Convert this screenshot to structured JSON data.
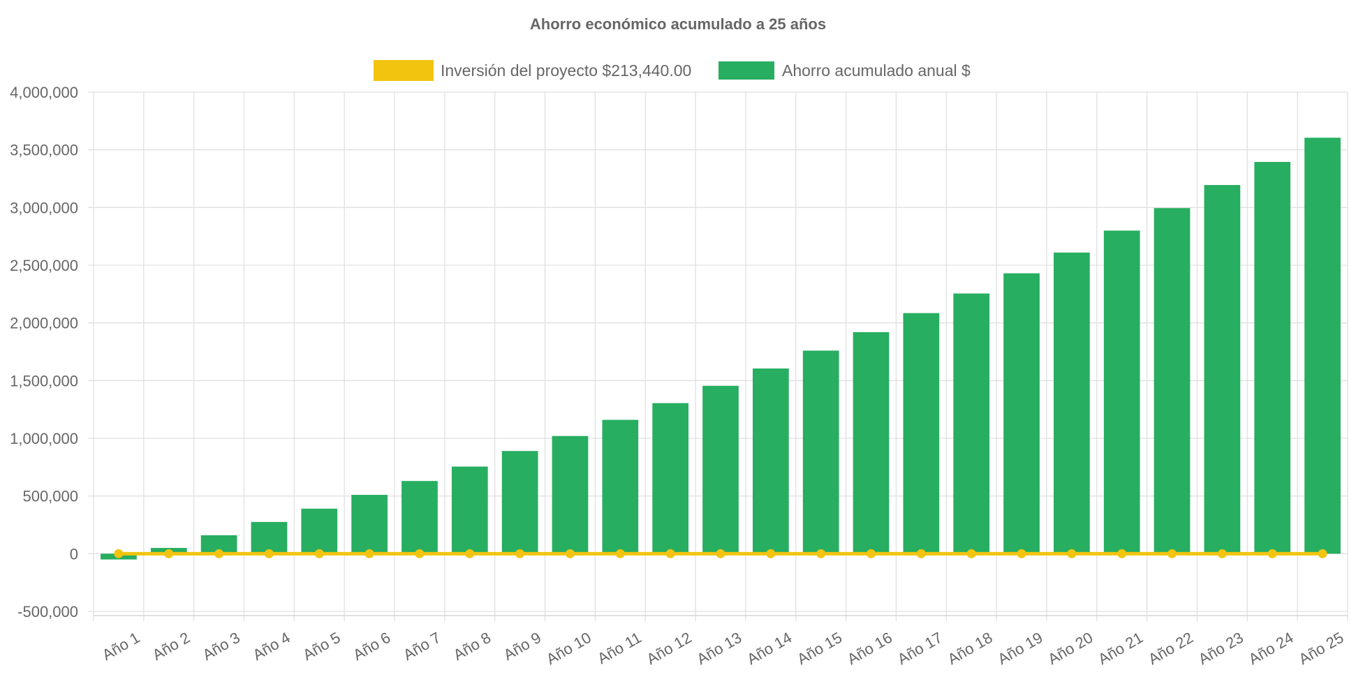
{
  "colors": {
    "investment": "#F2C40F",
    "savings": "#27AE60",
    "grid": "#e0e0e0",
    "text": "#666666"
  },
  "chart_data": {
    "type": "bar",
    "title": "Ahorro económico acumulado a 25 años",
    "xlabel": "",
    "ylabel": "",
    "ylim": [
      -500000,
      4000000
    ],
    "y_ticks": [
      "4,000,000",
      "3,500,000",
      "3,000,000",
      "2,500,000",
      "2,000,000",
      "1,500,000",
      "1,000,000",
      "500,000",
      "0",
      "-500,000"
    ],
    "y_tick_values": [
      4000000,
      3500000,
      3000000,
      2500000,
      2000000,
      1500000,
      1000000,
      500000,
      0,
      -500000
    ],
    "grid": true,
    "legend_position": "top",
    "categories": [
      "Año 1",
      "Año 2",
      "Año 3",
      "Año 4",
      "Año 5",
      "Año 6",
      "Año 7",
      "Año 8",
      "Año 9",
      "Año 10",
      "Año 11",
      "Año 12",
      "Año 13",
      "Año 14",
      "Año 15",
      "Año 16",
      "Año 17",
      "Año 18",
      "Año 19",
      "Año 20",
      "Año 21",
      "Año 22",
      "Año 23",
      "Año 24",
      "Año 25"
    ],
    "series": [
      {
        "name": "Inversión del proyecto $213,440.00",
        "type": "line",
        "color": "#F2C40F",
        "values": [
          0,
          0,
          0,
          0,
          0,
          0,
          0,
          0,
          0,
          0,
          0,
          0,
          0,
          0,
          0,
          0,
          0,
          0,
          0,
          0,
          0,
          0,
          0,
          0,
          0
        ]
      },
      {
        "name": "Ahorro acumulado anual $",
        "type": "bar",
        "color": "#27AE60",
        "values": [
          -50000,
          50000,
          160000,
          275000,
          390000,
          510000,
          630000,
          755000,
          890000,
          1020000,
          1160000,
          1305000,
          1455000,
          1605000,
          1760000,
          1920000,
          2085000,
          2255000,
          2430000,
          2610000,
          2800000,
          2995000,
          3195000,
          3395000,
          3605000
        ]
      }
    ]
  }
}
